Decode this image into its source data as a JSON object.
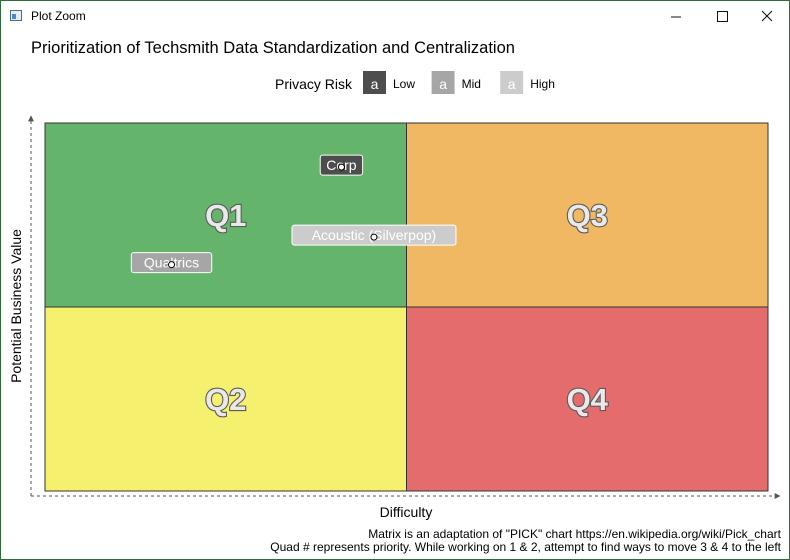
{
  "window": {
    "title": "Plot Zoom",
    "minimize_icon": "minimize-icon",
    "maximize_icon": "maximize-icon",
    "close_icon": "close-icon"
  },
  "chart_data": {
    "type": "scatter",
    "title": "Prioritization of Techsmith Data Standardization and Centralization",
    "xlabel": "Difficulty",
    "ylabel": "Potential Business Value",
    "xlim": [
      0,
      1
    ],
    "ylim": [
      0,
      1
    ],
    "grid": false,
    "axis_style": "dashed arrows",
    "quadrants": [
      {
        "label": "Q1",
        "x_range": [
          0,
          0.5
        ],
        "y_range": [
          0.5,
          1
        ],
        "color": "#64b46c"
      },
      {
        "label": "Q3",
        "x_range": [
          0.5,
          1
        ],
        "y_range": [
          0.5,
          1
        ],
        "color": "#f0b862"
      },
      {
        "label": "Q2",
        "x_range": [
          0,
          0.5
        ],
        "y_range": [
          0,
          0.5
        ],
        "color": "#f5f06e"
      },
      {
        "label": "Q4",
        "x_range": [
          0.5,
          1
        ],
        "y_range": [
          0,
          0.5
        ],
        "color": "#e46c6c"
      }
    ],
    "legend": {
      "title": "Privacy Risk",
      "placement": "top",
      "key_glyph": "a",
      "entries": [
        {
          "name": "Low",
          "color": "#4d4d4d"
        },
        {
          "name": "Mid",
          "color": "#a6a6a6"
        },
        {
          "name": "High",
          "color": "#cccccc"
        }
      ]
    },
    "points": [
      {
        "label": "Corp",
        "x": 0.41,
        "y": 0.88,
        "risk": "Low"
      },
      {
        "label": "Acoustic (Silverpop)",
        "x": 0.455,
        "y": 0.69,
        "risk": "High"
      },
      {
        "label": "Qualtrics",
        "x": 0.175,
        "y": 0.615,
        "risk": "Mid"
      }
    ],
    "caption": [
      "Matrix is an adaptation of \"PICK\" chart https://en.wikipedia.org/wiki/Pick_chart",
      "Quad # represents priority. While working on 1 & 2, attempt to find ways to move 3 & 4 to the left"
    ]
  }
}
